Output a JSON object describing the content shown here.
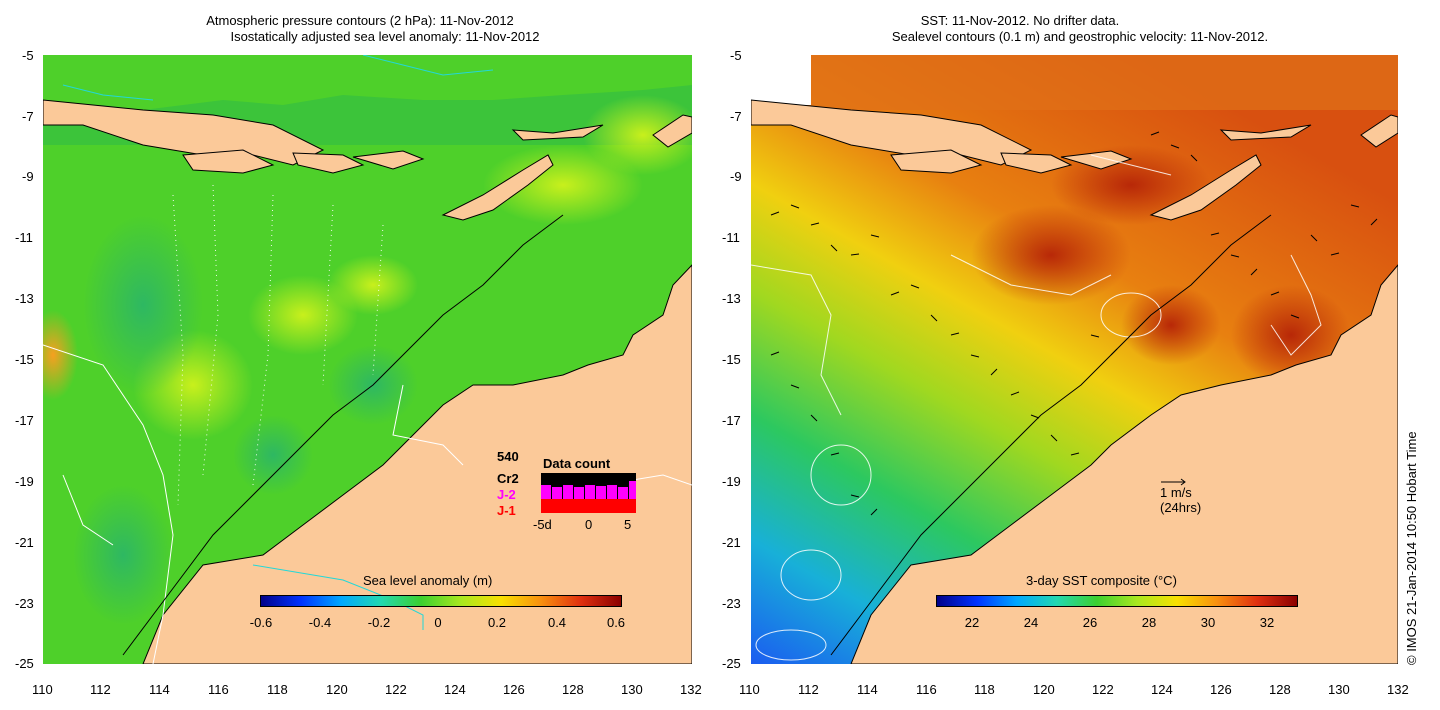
{
  "left_panel": {
    "title_line1": "Atmospheric pressure contours (2 hPa): 11-Nov-2012",
    "title_line2": "Isostatically adjusted sea level anomaly: 11-Nov-2012",
    "y_ticks": [
      "-5",
      "-7",
      "-9",
      "-11",
      "-13",
      "-15",
      "-17",
      "-19",
      "-21",
      "-23",
      "-25"
    ],
    "x_ticks": [
      "110",
      "112",
      "114",
      "116",
      "118",
      "120",
      "122",
      "124",
      "126",
      "128",
      "130",
      "132"
    ],
    "colorbar_label": "Sea level anomaly (m)",
    "colorbar_ticks": [
      "-0.6",
      "-0.4",
      "-0.2",
      "0",
      "0.2",
      "0.4",
      "0.6"
    ],
    "data_count": {
      "title": "Data count",
      "count_value": "540",
      "missions": [
        {
          "name": "Cr2",
          "color": "#000000"
        },
        {
          "name": "J-2",
          "color": "#ff00ff"
        },
        {
          "name": "J-1",
          "color": "#ff0000"
        }
      ],
      "axis_ticks": [
        "-5d",
        "0",
        "5"
      ]
    }
  },
  "right_panel": {
    "title_line1": "SST: 11-Nov-2012. No drifter data.",
    "title_line2": "Sealevel contours (0.1 m) and geostrophic velocity: 11-Nov-2012.",
    "y_ticks": [
      "-5",
      "-7",
      "-9",
      "-11",
      "-13",
      "-15",
      "-17",
      "-19",
      "-21",
      "-23",
      "-25"
    ],
    "x_ticks": [
      "110",
      "112",
      "114",
      "116",
      "118",
      "120",
      "122",
      "124",
      "126",
      "128",
      "130",
      "132"
    ],
    "colorbar_label": "3-day SST composite (°C)",
    "colorbar_ticks": [
      "22",
      "24",
      "26",
      "28",
      "30",
      "32"
    ],
    "scale_arrow_label1": "1 m/s",
    "scale_arrow_label2": "(24hrs)"
  },
  "credit": "© IMOS 21-Jan-2014 10:50 Hobart Time",
  "colors": {
    "land": "#fbc999",
    "ocean_left": "#44cc22",
    "sst_warm": "#e06a14"
  }
}
